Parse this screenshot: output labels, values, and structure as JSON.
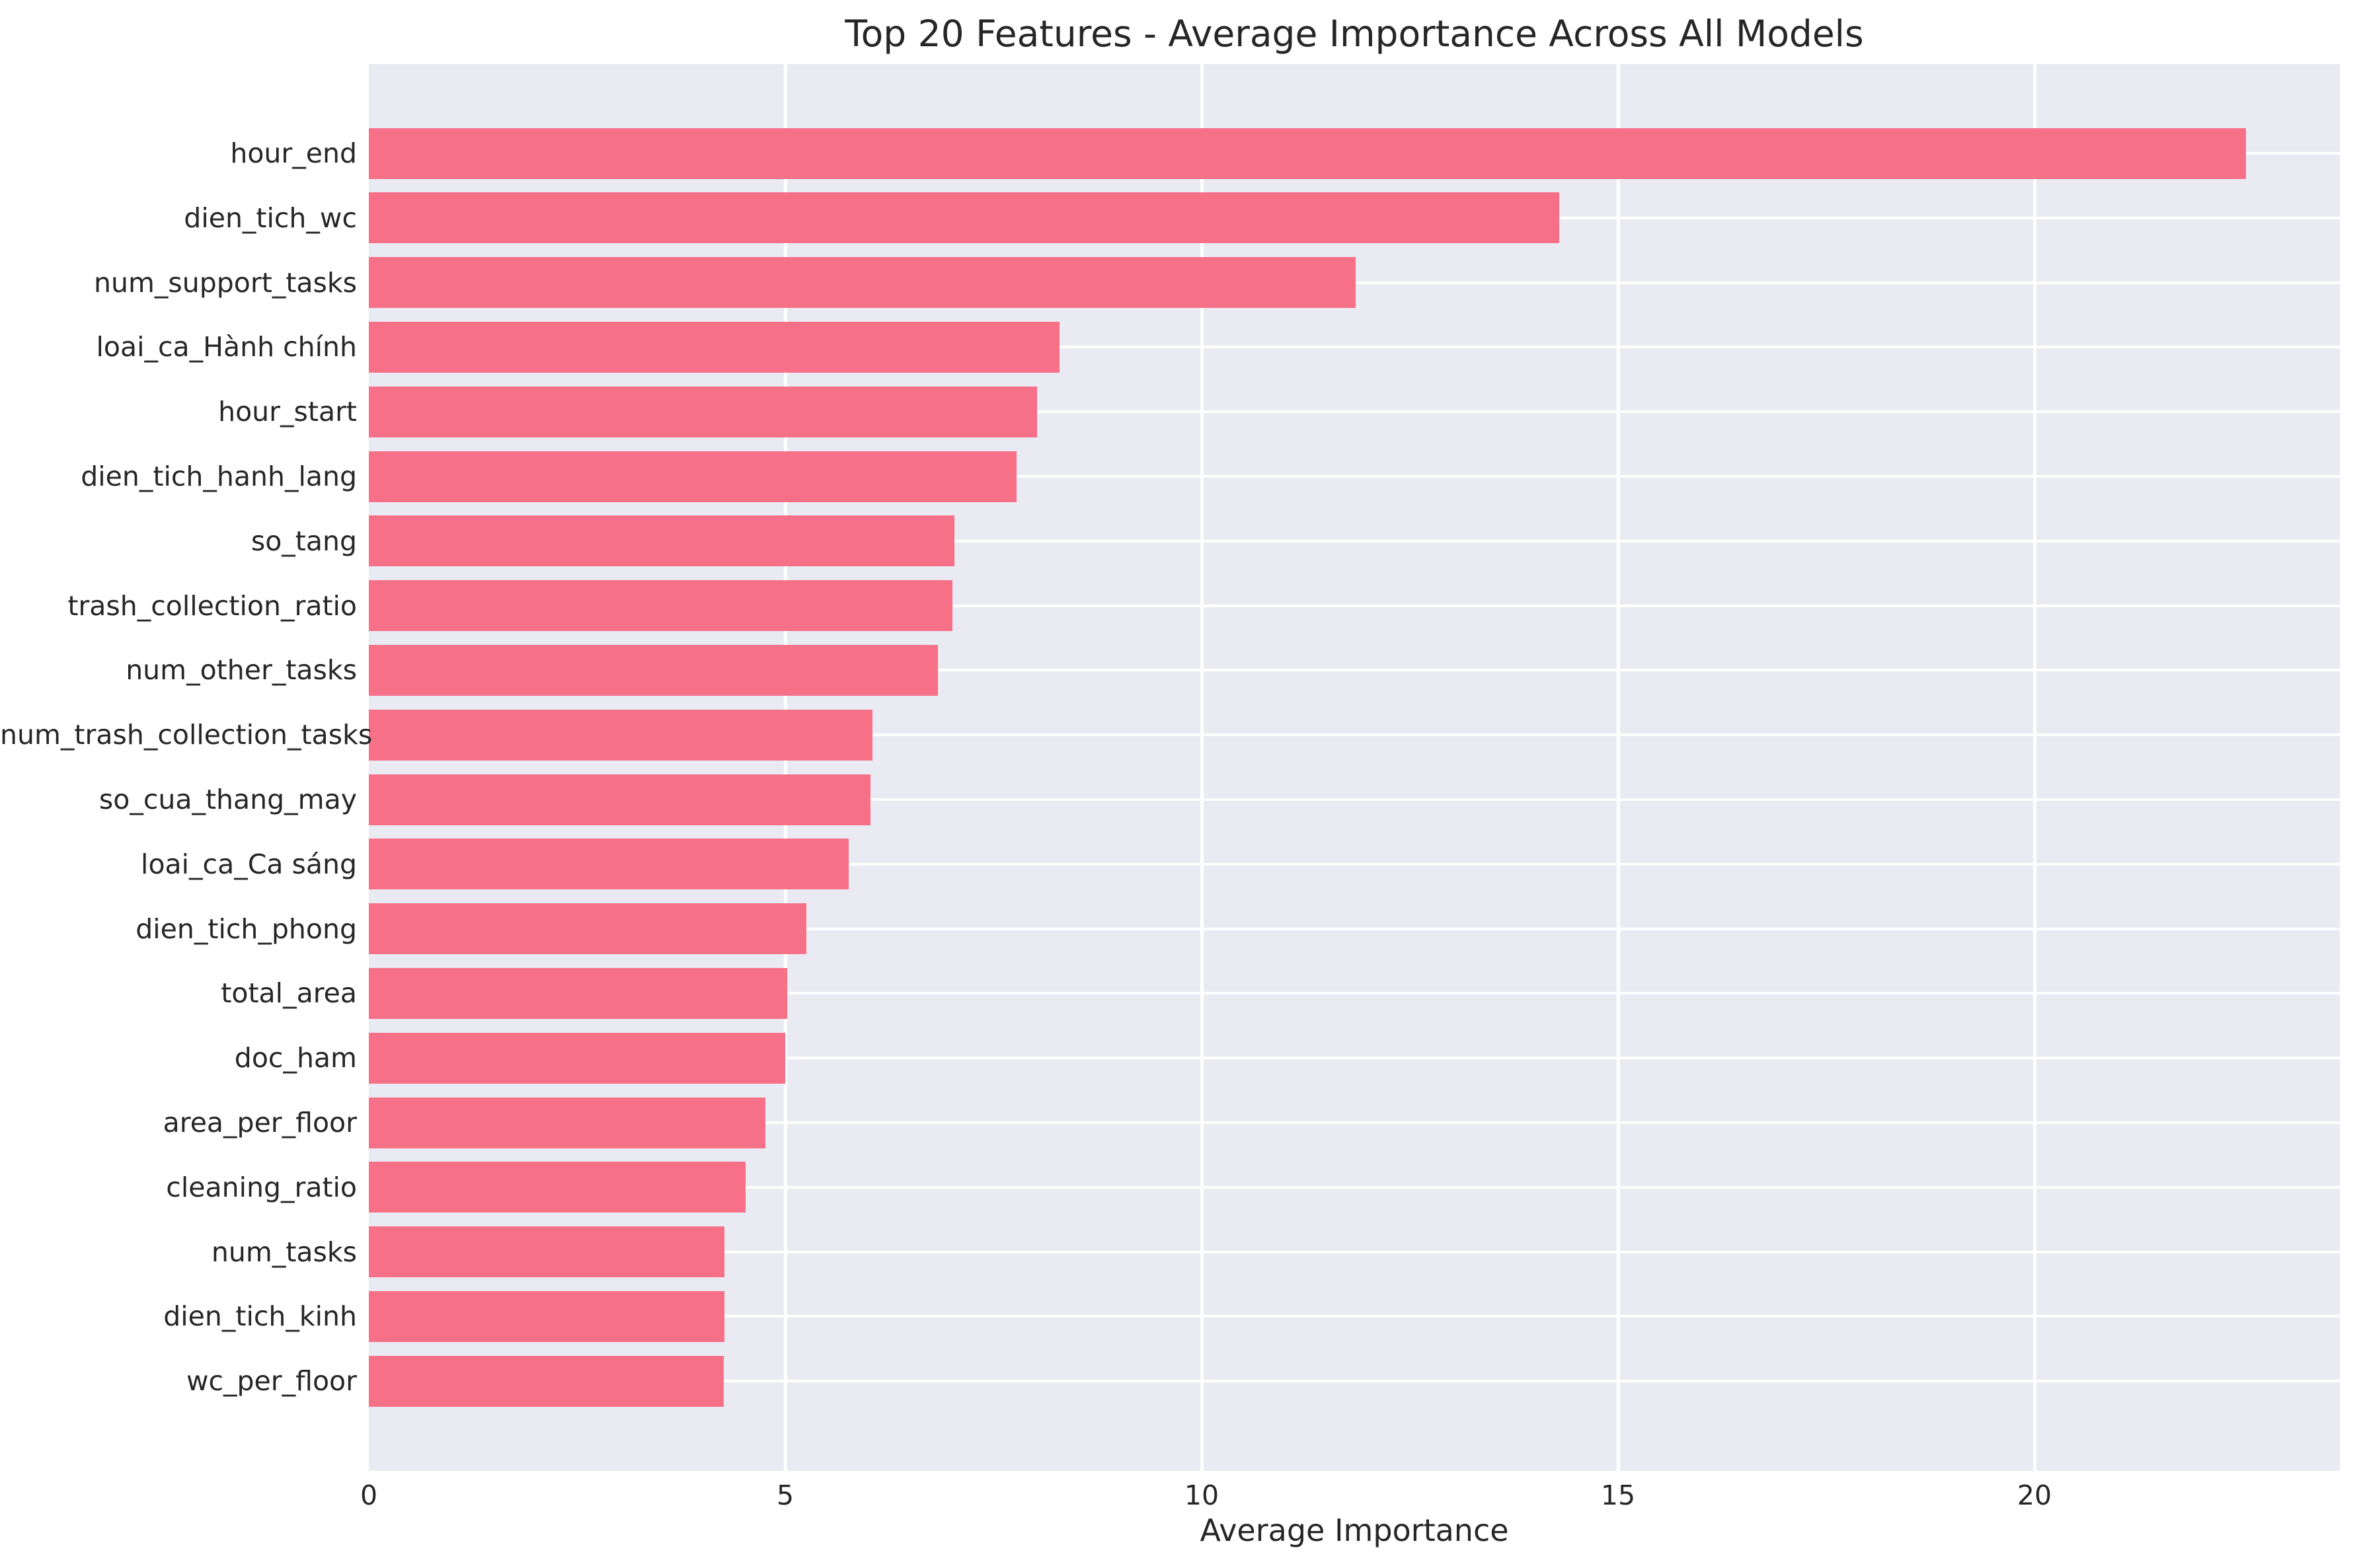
{
  "chart_data": {
    "type": "bar",
    "orientation": "horizontal",
    "title": "Top 20 Features - Average Importance Across All Models",
    "xlabel": "Average Importance",
    "ylabel": "",
    "categories": [
      "hour_end",
      "dien_tich_wc",
      "num_support_tasks",
      "loai_ca_Hành chính",
      "hour_start",
      "dien_tich_hanh_lang",
      "so_tang",
      "trash_collection_ratio",
      "num_other_tasks",
      "num_trash_collection_tasks",
      "so_cua_thang_may",
      "loai_ca_Ca sáng",
      "dien_tich_phong",
      "total_area",
      "doc_ham",
      "area_per_floor",
      "cleaning_ratio",
      "num_tasks",
      "dien_tich_kinh",
      "wc_per_floor"
    ],
    "values": [
      22.54,
      14.29,
      11.85,
      8.29,
      8.02,
      7.78,
      7.03,
      7.01,
      6.83,
      6.05,
      6.02,
      5.76,
      5.25,
      5.02,
      5.0,
      4.76,
      4.52,
      4.27,
      4.27,
      4.26
    ],
    "xlim": [
      0,
      23.67
    ],
    "xticks": [
      0,
      5,
      10,
      15,
      20
    ],
    "grid": true,
    "legend": false,
    "colors": {
      "bar": "#F67088",
      "plot_background": "#EAEAF2",
      "gridline": "#FFFFFF",
      "text": "#262626",
      "page_background": "#FFFFFF"
    }
  }
}
